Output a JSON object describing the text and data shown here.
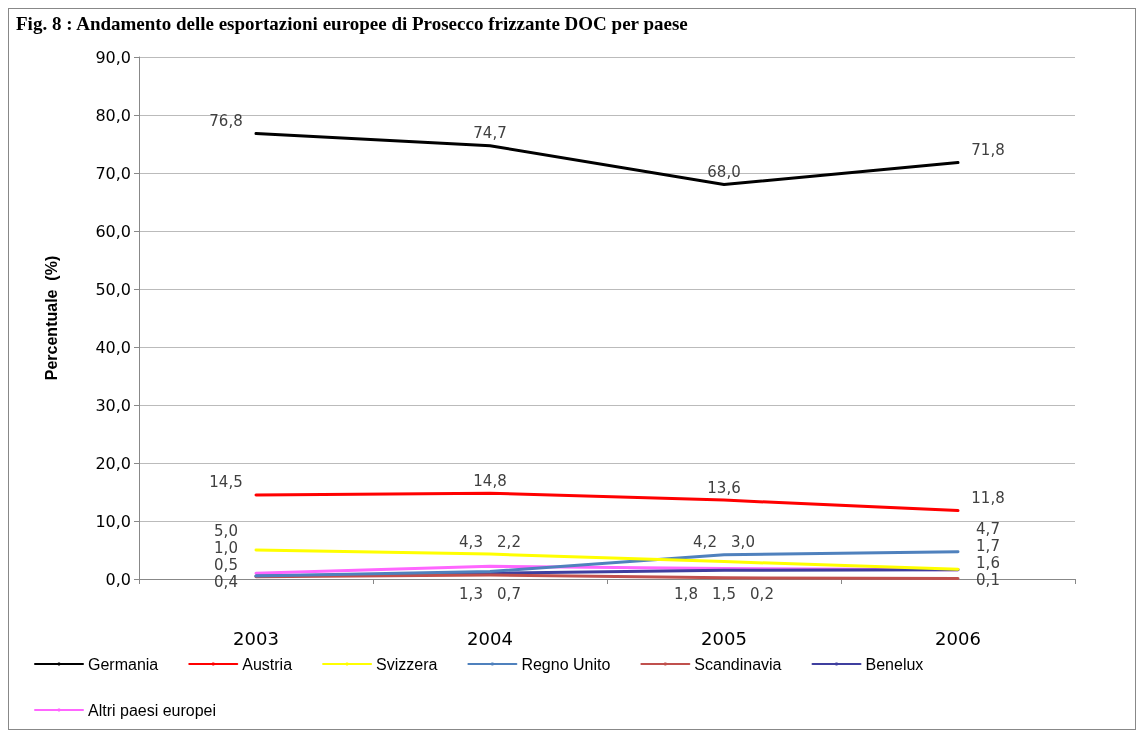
{
  "chart_data": {
    "type": "line",
    "title": "Fig. 8 : Andamento delle esportazioni europee di Prosecco frizzante DOC per paese",
    "ylabel": "Percentuale  (%)",
    "categories": [
      "2003",
      "2004",
      "2005",
      "2006"
    ],
    "ylim": [
      0,
      90
    ],
    "yticks": [
      {
        "value": 0,
        "label": "0,0"
      },
      {
        "value": 10,
        "label": "10,0"
      },
      {
        "value": 20,
        "label": "20,0"
      },
      {
        "value": 30,
        "label": "30,0"
      },
      {
        "value": 40,
        "label": "40,0"
      },
      {
        "value": 50,
        "label": "50,0"
      },
      {
        "value": 60,
        "label": "60,0"
      },
      {
        "value": 70,
        "label": "70,0"
      },
      {
        "value": 80,
        "label": "80,0"
      },
      {
        "value": 90,
        "label": "90,0"
      }
    ],
    "grid": "y",
    "legend": "bottom",
    "marker": "none",
    "line_style": "solid",
    "series": [
      {
        "name": "Germania",
        "color": "#000000",
        "values": [
          76.8,
          74.7,
          68.0,
          71.8
        ],
        "value_labels": [
          "76,8",
          "74,7",
          "68,0",
          "71,8"
        ]
      },
      {
        "name": "Austria",
        "color": "#ff0000",
        "values": [
          14.5,
          14.8,
          13.6,
          11.8
        ],
        "value_labels": [
          "14,5",
          "14,8",
          "13,6",
          "11,8"
        ]
      },
      {
        "name": "Svizzera",
        "color": "#ffff00",
        "values": [
          5.0,
          4.3,
          3.0,
          1.7
        ],
        "value_labels": [
          "5,0",
          "4,3",
          "3,0",
          "1,7"
        ]
      },
      {
        "name": "Regno Unito",
        "color": "#4f81bd",
        "values": [
          0.5,
          1.3,
          4.2,
          4.7
        ],
        "value_labels": [
          "0,5",
          "1,3",
          "4,2",
          "4,7"
        ]
      },
      {
        "name": "Scandinavia",
        "color": "#c0504d",
        "values": [
          0.4,
          0.7,
          0.2,
          0.1
        ],
        "value_labels": [
          "0,4",
          "0,7",
          "0,2",
          "0,1"
        ]
      },
      {
        "name": "Benelux",
        "color": "#3f3f9f",
        "values": [
          0.5,
          1.0,
          1.5,
          1.6
        ],
        "value_labels": [
          null,
          null,
          "1,5",
          "1,6"
        ]
      },
      {
        "name": "Altri paesi europei",
        "color": "#ff66ff",
        "values": [
          1.0,
          2.2,
          1.8,
          1.6
        ],
        "value_labels": [
          "1,0",
          "2,2",
          "1,8",
          null
        ]
      }
    ]
  }
}
